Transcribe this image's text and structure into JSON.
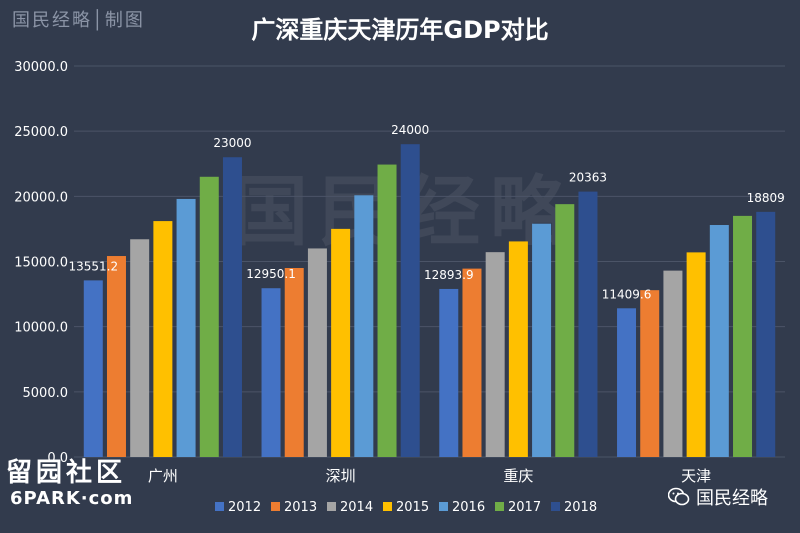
{
  "branding": {
    "top_label": "国民经略│制图",
    "bottom_cn": "留园社区",
    "bottom_en": "6PARK·com",
    "wechat_label": "国民经略",
    "watermark": "国民经略"
  },
  "chart_data": {
    "type": "bar",
    "title": "广深重庆天津历年GDP对比",
    "categories": [
      "广州",
      "深圳",
      "重庆",
      "天津"
    ],
    "ylim": [
      0,
      30000
    ],
    "yticks": [
      0,
      5000,
      10000,
      15000,
      20000,
      25000,
      30000
    ],
    "ytick_labels": [
      "0.0",
      "5000.0",
      "10000.0",
      "15000.0",
      "20000.0",
      "25000.0",
      "30000.0"
    ],
    "grid": true,
    "legend_position": "bottom",
    "series": [
      {
        "name": "2012",
        "color": "#4472c4",
        "values": [
          13551.2,
          12950.1,
          12893.9,
          11409.6
        ]
      },
      {
        "name": "2013",
        "color": "#ed7d31",
        "values": [
          15420,
          14500,
          14454,
          12800
        ]
      },
      {
        "name": "2014",
        "color": "#a5a5a5",
        "values": [
          16707,
          16002,
          15717,
          14300
        ]
      },
      {
        "name": "2015",
        "color": "#ffc000",
        "values": [
          18100,
          17503,
          16541,
          15700
        ]
      },
      {
        "name": "2016",
        "color": "#5b9bd5",
        "values": [
          19800,
          20079,
          17900,
          17800
        ]
      },
      {
        "name": "2017",
        "color": "#70ad47",
        "values": [
          21500,
          22438,
          19400,
          18500
        ]
      },
      {
        "name": "2018",
        "color": "#2e4f8f",
        "values": [
          23000,
          24000,
          20363,
          18809
        ]
      }
    ],
    "data_labels": [
      {
        "category": 0,
        "series": 0,
        "text": "13551.2"
      },
      {
        "category": 0,
        "series": 6,
        "text": "23000"
      },
      {
        "category": 1,
        "series": 0,
        "text": "12950.1"
      },
      {
        "category": 1,
        "series": 6,
        "text": "24000"
      },
      {
        "category": 2,
        "series": 0,
        "text": "12893.9"
      },
      {
        "category": 2,
        "series": 6,
        "text": "20363"
      },
      {
        "category": 3,
        "series": 0,
        "text": "11409.6"
      },
      {
        "category": 3,
        "series": 6,
        "text": "18809"
      }
    ]
  }
}
